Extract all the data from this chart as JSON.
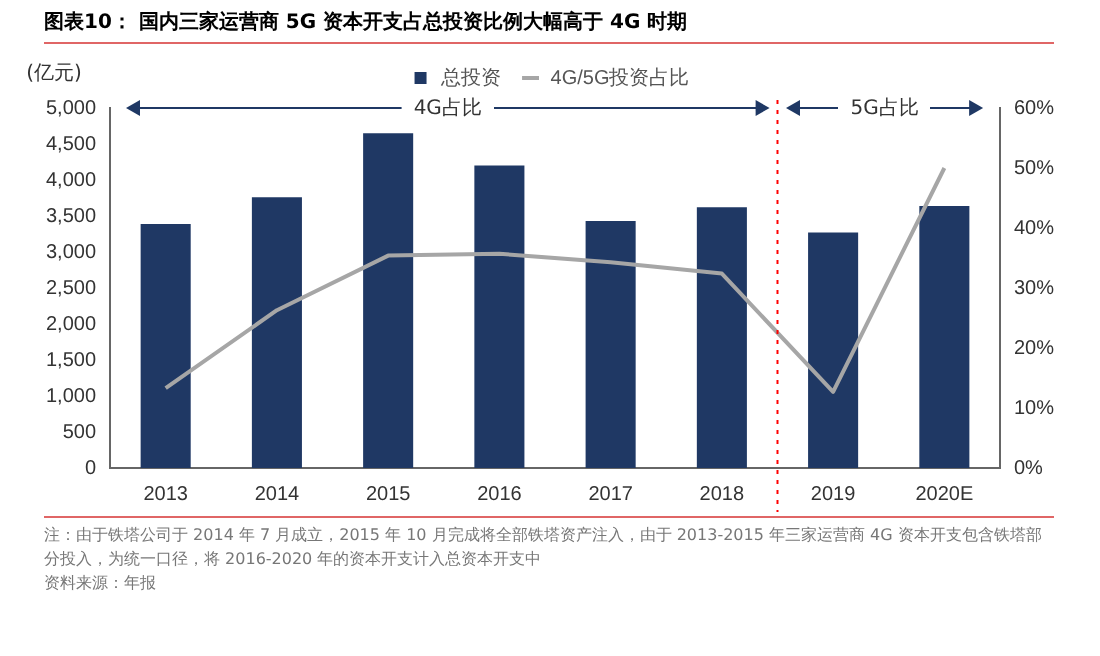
{
  "chart_data": {
    "type": "bar",
    "title": "图表10：  国内三家运营商 5G 资本开支占总投资比例大幅高于 4G 时期",
    "ylabel": "(亿元)",
    "categories": [
      "2013",
      "2014",
      "2015",
      "2016",
      "2017",
      "2018",
      "2019",
      "2020E"
    ],
    "series": [
      {
        "name": "总投资",
        "color": "#1f3864",
        "values": [
          3390,
          3760,
          4650,
          4200,
          3430,
          3620,
          3270,
          3640
        ]
      },
      {
        "name": "4G/5G投资占比",
        "type": "line",
        "axis": "y2",
        "color": "#a6a6a6",
        "marker": "none",
        "values": [
          13.3,
          26.3,
          35.4,
          35.7,
          34.3,
          32.4,
          12.7,
          50
        ]
      }
    ],
    "ylim": [
      0,
      5000
    ],
    "yticks": [
      0,
      {
        "value": 500,
        "label": "500"
      },
      {
        "value": 1000,
        "label": "1,000"
      },
      {
        "value": 1500,
        "label": "1,500"
      },
      {
        "value": 2000,
        "label": "2,000"
      },
      {
        "value": 2500,
        "label": "2,500"
      },
      {
        "value": 3000,
        "label": "3,000"
      },
      {
        "value": 3500,
        "label": "3,500"
      },
      {
        "value": 4000,
        "label": "4,000"
      },
      {
        "value": 4500,
        "label": "4,500"
      },
      {
        "value": 5000,
        "label": "5,000"
      }
    ],
    "y2lim": [
      0,
      60
    ],
    "y2ticks": [
      {
        "value": 0,
        "label": "0%"
      },
      {
        "value": 10,
        "label": "10%"
      },
      {
        "value": 20,
        "label": "20%"
      },
      {
        "value": 30,
        "label": "30%"
      },
      {
        "value": 40,
        "label": "40%"
      },
      {
        "value": 50,
        "label": "50%"
      },
      {
        "value": 60,
        "label": "60%"
      }
    ],
    "ref_lines": [
      {
        "axis": "x",
        "value": "2019",
        "color": "#ff0000",
        "line_style": "dotted"
      }
    ],
    "annotations": [
      "4G占比",
      "5G占比",
      "注：由于铁塔公司于 2014 年 7 月成立，2015 年 10 月完成将全部铁塔资产注入，由于 2013-2015 年三家运营商 4G 资本开支包含铁塔部分投入，为统一口径，将 2016-2020 年的资本开支计入总资本开支中",
      "资料来源：年报"
    ],
    "grid": false,
    "legend": "top"
  }
}
